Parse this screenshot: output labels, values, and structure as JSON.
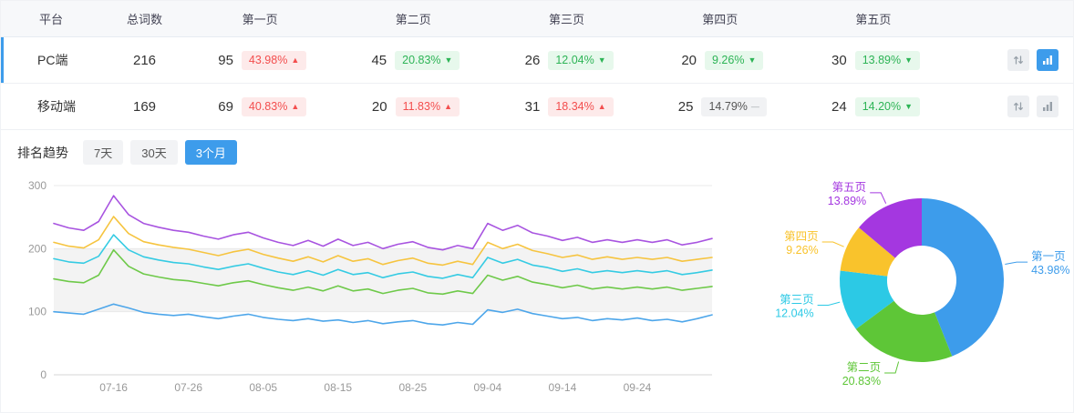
{
  "accent_color": "#3d9ceb",
  "icons": {
    "sort": "up-down-arrows",
    "trend": "bar-chart"
  },
  "table": {
    "headers": [
      "平台",
      "总词数",
      "第一页",
      "第二页",
      "第三页",
      "第四页",
      "第五页"
    ],
    "rows": [
      {
        "platform": "PC端",
        "total": "216",
        "pages": [
          {
            "count": "95",
            "pct": "43.98%",
            "dir": "up"
          },
          {
            "count": "45",
            "pct": "20.83%",
            "dir": "down"
          },
          {
            "count": "26",
            "pct": "12.04%",
            "dir": "down"
          },
          {
            "count": "20",
            "pct": "9.26%",
            "dir": "down"
          },
          {
            "count": "30",
            "pct": "13.89%",
            "dir": "down"
          }
        ]
      },
      {
        "platform": "移动端",
        "total": "169",
        "pages": [
          {
            "count": "69",
            "pct": "40.83%",
            "dir": "up"
          },
          {
            "count": "20",
            "pct": "11.83%",
            "dir": "up"
          },
          {
            "count": "31",
            "pct": "18.34%",
            "dir": "up"
          },
          {
            "count": "25",
            "pct": "14.79%",
            "dir": "flat"
          },
          {
            "count": "24",
            "pct": "14.20%",
            "dir": "down"
          }
        ]
      }
    ]
  },
  "trend": {
    "title": "排名趋势",
    "tabs": [
      {
        "label": "7天",
        "active": false
      },
      {
        "label": "30天",
        "active": false
      },
      {
        "label": "3个月",
        "active": true
      }
    ]
  },
  "chart_data": [
    {
      "type": "line",
      "title": "排名趋势（3个月）",
      "ylim": [
        0,
        300
      ],
      "y_ticks": [
        0,
        100,
        200,
        300
      ],
      "x_ticks": [
        "07-16",
        "07-26",
        "08-05",
        "08-15",
        "08-25",
        "09-04",
        "09-14",
        "09-24"
      ],
      "tick_indices": [
        4,
        9,
        14,
        19,
        24,
        29,
        34,
        39
      ],
      "grid": true,
      "band": [
        100,
        200
      ],
      "series": [
        {
          "name": "第一页",
          "color": "#4da6ea",
          "values": [
            100,
            98,
            96,
            104,
            112,
            106,
            99,
            96,
            94,
            96,
            92,
            89,
            93,
            96,
            91,
            88,
            86,
            89,
            85,
            87,
            83,
            86,
            81,
            84,
            86,
            81,
            79,
            83,
            80,
            103,
            99,
            104,
            97,
            93,
            89,
            91,
            86,
            89,
            87,
            90,
            86,
            88,
            84,
            89,
            95
          ]
        },
        {
          "name": "第二页",
          "color": "#6ec949",
          "values": [
            152,
            148,
            146,
            158,
            198,
            172,
            160,
            155,
            151,
            149,
            145,
            141,
            146,
            149,
            143,
            138,
            134,
            139,
            133,
            141,
            133,
            136,
            129,
            134,
            137,
            130,
            128,
            133,
            129,
            158,
            150,
            156,
            147,
            143,
            138,
            142,
            136,
            139,
            136,
            139,
            136,
            139,
            134,
            137,
            140
          ]
        },
        {
          "name": "第三页",
          "color": "#35cbe3",
          "values": [
            184,
            179,
            177,
            188,
            222,
            198,
            187,
            182,
            178,
            176,
            171,
            167,
            172,
            176,
            169,
            163,
            159,
            165,
            158,
            167,
            159,
            162,
            154,
            160,
            163,
            156,
            153,
            159,
            154,
            186,
            177,
            183,
            174,
            170,
            164,
            168,
            162,
            165,
            162,
            165,
            162,
            165,
            159,
            162,
            166
          ]
        },
        {
          "name": "第四页",
          "color": "#f6c43f",
          "values": [
            210,
            204,
            201,
            214,
            251,
            224,
            211,
            206,
            202,
            199,
            194,
            189,
            195,
            199,
            191,
            185,
            180,
            187,
            179,
            189,
            180,
            184,
            175,
            181,
            185,
            177,
            174,
            180,
            175,
            210,
            200,
            207,
            197,
            192,
            186,
            190,
            183,
            187,
            183,
            186,
            183,
            186,
            180,
            183,
            186
          ]
        },
        {
          "name": "第五页",
          "color": "#a854e0",
          "values": [
            240,
            233,
            229,
            243,
            284,
            254,
            240,
            234,
            229,
            226,
            220,
            215,
            222,
            226,
            217,
            210,
            205,
            213,
            204,
            215,
            205,
            210,
            200,
            207,
            211,
            202,
            198,
            205,
            200,
            240,
            229,
            237,
            225,
            220,
            213,
            218,
            210,
            214,
            210,
            214,
            210,
            214,
            206,
            210,
            216
          ]
        }
      ]
    },
    {
      "type": "pie",
      "donut": true,
      "slices": [
        {
          "name": "第一页",
          "pct": 43.98,
          "color": "#3d9ceb"
        },
        {
          "name": "第二页",
          "pct": 20.83,
          "color": "#5ec637"
        },
        {
          "name": "第三页",
          "pct": 12.04,
          "color": "#2cc9e5"
        },
        {
          "name": "第四页",
          "pct": 9.26,
          "color": "#f9c32c"
        },
        {
          "name": "第五页",
          "pct": 13.89,
          "color": "#a437e0"
        }
      ]
    }
  ]
}
